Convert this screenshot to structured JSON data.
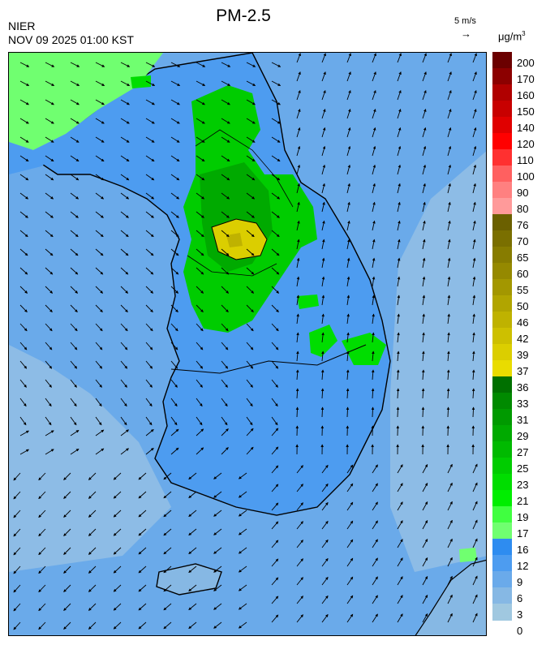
{
  "header": {
    "agency": "NIER",
    "timestamp": "NOV 09 2025 01:00 KST",
    "title": "PM-2.5",
    "wind_reference": "5 m/s",
    "unit": "μg/m",
    "unit_sup": "3"
  },
  "legend": {
    "labels": [
      "200",
      "170",
      "160",
      "150",
      "140",
      "120",
      "110",
      "100",
      "90",
      "80",
      "76",
      "70",
      "65",
      "60",
      "55",
      "50",
      "46",
      "42",
      "39",
      "37",
      "36",
      "33",
      "31",
      "29",
      "27",
      "25",
      "23",
      "21",
      "19",
      "17",
      "16",
      "12",
      "9",
      "6",
      "3",
      "0"
    ],
    "colors": [
      "#6b0000",
      "#8c0000",
      "#b00000",
      "#c80000",
      "#e00000",
      "#ff0000",
      "#ff3030",
      "#ff6060",
      "#ff8080",
      "#ff9a9a",
      "#6b6000",
      "#7a6f00",
      "#877c00",
      "#958900",
      "#a39700",
      "#b1a500",
      "#bfb200",
      "#cdc000",
      "#dbce00",
      "#e9dc00",
      "#007000",
      "#008a00",
      "#009a00",
      "#00aa00",
      "#00ba00",
      "#00cc00",
      "#00dd00",
      "#00ee00",
      "#40ff40",
      "#70ff70",
      "#2e8cf0",
      "#4d9cf0",
      "#6aaaea",
      "#86b8e4",
      "#a0c8e0"
    ]
  },
  "map": {
    "sea_color": "#8dbce6",
    "land_color": "#4d9cf0",
    "coast_color": "#000000",
    "wind_arrows": "on"
  }
}
